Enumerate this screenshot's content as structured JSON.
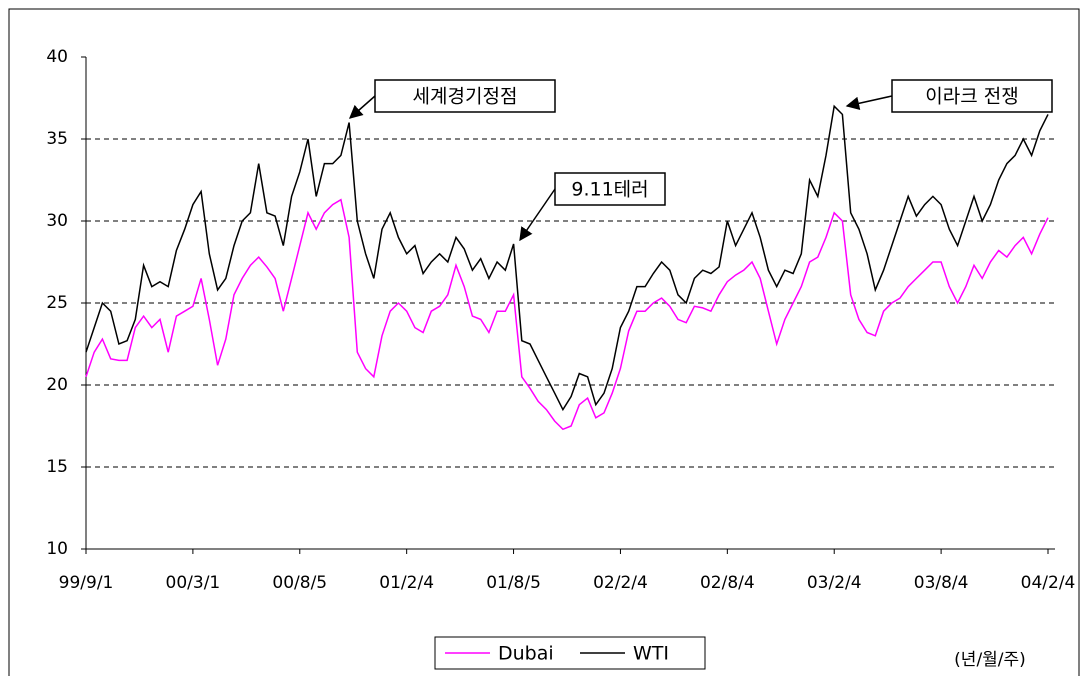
{
  "chart_data": {
    "type": "line",
    "categories": [
      "99/9/1",
      null,
      null,
      null,
      null,
      null,
      null,
      null,
      null,
      null,
      null,
      null,
      null,
      "00/3/1",
      null,
      null,
      null,
      null,
      null,
      null,
      null,
      null,
      null,
      null,
      null,
      null,
      "00/8/5",
      null,
      null,
      null,
      null,
      null,
      null,
      null,
      null,
      null,
      null,
      null,
      null,
      "01/2/4",
      null,
      null,
      null,
      null,
      null,
      null,
      null,
      null,
      null,
      null,
      null,
      null,
      "01/8/5",
      null,
      null,
      null,
      null,
      null,
      null,
      null,
      null,
      null,
      null,
      null,
      null,
      "02/2/4",
      null,
      null,
      null,
      null,
      null,
      null,
      null,
      null,
      null,
      null,
      null,
      null,
      "02/8/4",
      null,
      null,
      null,
      null,
      null,
      null,
      null,
      null,
      null,
      null,
      null,
      null,
      "03/2/4",
      null,
      null,
      null,
      null,
      null,
      null,
      null,
      null,
      null,
      null,
      null,
      null,
      "03/8/4",
      null,
      null,
      null,
      null,
      null,
      null,
      null,
      null,
      null,
      null,
      null,
      null,
      "04/2/4"
    ],
    "series": [
      {
        "name": "Dubai",
        "color": "#ff00ff",
        "values": [
          20.5,
          22,
          22.8,
          21.6,
          21.5,
          21.5,
          23.5,
          24.2,
          23.5,
          24,
          22,
          24.2,
          24.5,
          24.8,
          26.5,
          24,
          21.2,
          22.8,
          25.5,
          26.5,
          27.3,
          27.8,
          27.2,
          26.5,
          24.5,
          26.5,
          28.5,
          30.5,
          29.5,
          30.5,
          31,
          31.3,
          29,
          22,
          21,
          20.5,
          23,
          24.5,
          25,
          24.5,
          23.5,
          23.2,
          24.5,
          24.8,
          25.5,
          27.3,
          26,
          24.2,
          24,
          23.2,
          24.5,
          24.5,
          25.5,
          20.5,
          19.8,
          19,
          18.5,
          17.8,
          17.3,
          17.5,
          18.8,
          19.2,
          18,
          18.3,
          19.5,
          21,
          23.3,
          24.5,
          24.5,
          25,
          25.3,
          24.8,
          24,
          23.8,
          24.8,
          24.7,
          24.5,
          25.5,
          26.3,
          26.7,
          27,
          27.5,
          26.5,
          24.5,
          22.5,
          24,
          25,
          26,
          27.5,
          27.8,
          29,
          30.5,
          30,
          25.5,
          24,
          23.2,
          23,
          24.5,
          25,
          25.3,
          26,
          26.5,
          27,
          27.5,
          27.5,
          26,
          25,
          26,
          27.3,
          26.5,
          27.5,
          28.2,
          27.8,
          28.5,
          29,
          28,
          29.2,
          30.2
        ]
      },
      {
        "name": "WTI",
        "color": "#000000",
        "values": [
          22,
          23.5,
          25,
          24.5,
          22.5,
          22.7,
          24,
          27.3,
          26,
          26.3,
          26,
          28.2,
          29.5,
          31,
          31.8,
          28,
          25.8,
          26.5,
          28.5,
          30,
          30.5,
          33.5,
          30.5,
          30.3,
          28.5,
          31.5,
          33,
          35,
          31.5,
          33.5,
          33.5,
          34,
          36,
          30,
          28,
          26.5,
          29.5,
          30.5,
          29,
          28,
          28.5,
          26.8,
          27.5,
          28,
          27.5,
          29,
          28.3,
          27,
          27.7,
          26.5,
          27.5,
          27,
          28.6,
          22.7,
          22.5,
          21.5,
          20.5,
          19.5,
          18.5,
          19.3,
          20.7,
          20.5,
          18.8,
          19.5,
          21,
          23.5,
          24.5,
          26,
          26,
          26.8,
          27.5,
          27,
          25.5,
          25,
          26.5,
          27,
          26.8,
          27.2,
          30,
          28.5,
          29.5,
          30.5,
          29,
          27,
          26,
          27,
          26.8,
          28,
          32.5,
          31.5,
          34,
          37,
          36.5,
          30.5,
          29.5,
          28,
          25.8,
          27,
          28.5,
          30,
          31.5,
          30.3,
          31,
          31.5,
          31,
          29.5,
          28.5,
          30,
          31.5,
          30,
          31,
          32.5,
          33.5,
          34,
          35,
          34,
          35.5,
          36.5
        ]
      }
    ],
    "ylim": [
      10,
      40
    ],
    "yticks": [
      10,
      15,
      20,
      25,
      30,
      35,
      40
    ],
    "grid": true,
    "annotations": [
      "세계경기정점",
      "9.11테러",
      "이라크 전쟁"
    ],
    "x_unit": "(년/월/주)",
    "legend": "bottom"
  }
}
